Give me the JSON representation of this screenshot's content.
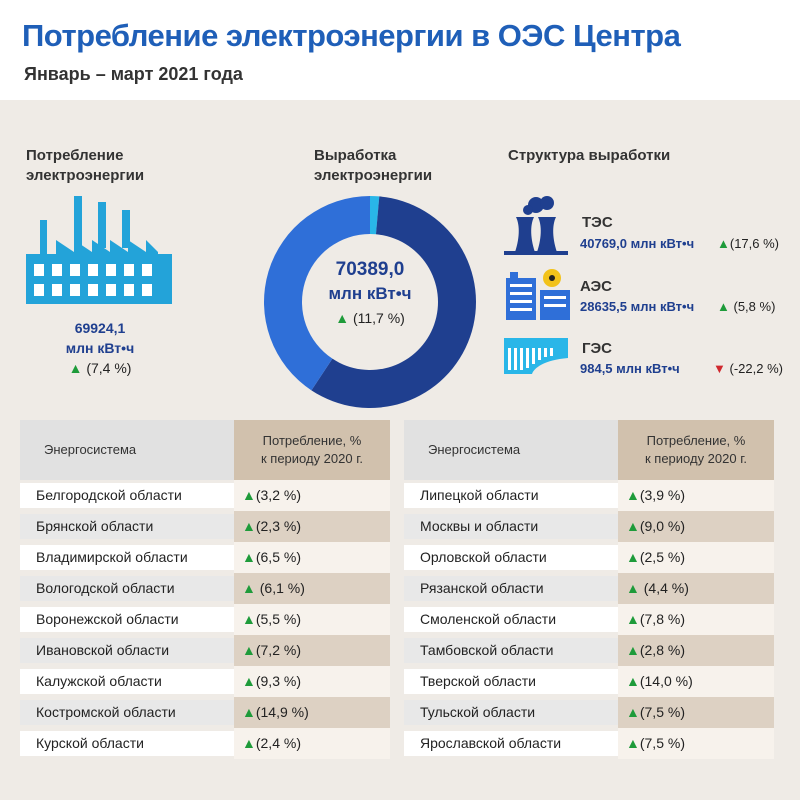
{
  "title": "Потребление электроэнергии в ОЭС Центра",
  "subtitle": "Январь – март 2021 года",
  "consumption": {
    "heading_line1": "Потребление",
    "heading_line2": "электроэнергии",
    "value": "69924,1",
    "unit": "млн кВт•ч",
    "change": "(7,4 %)",
    "direction": "up",
    "icon": "factory-icon"
  },
  "generation": {
    "heading_line1": "Выработка",
    "heading_line2": "электроэнергии",
    "value": "70389,0",
    "unit": "млн кВт•ч",
    "change": "(11,7 %)",
    "direction": "up"
  },
  "structure": {
    "heading": "Структура выработки",
    "items": [
      {
        "name": "ТЭС",
        "value": "40769,0 млн  кВт•ч",
        "change": "(17,6 %)",
        "direction": "up",
        "icon": "thermal-plant-icon"
      },
      {
        "name": "АЭС",
        "value": "28635,5 млн кВт•ч",
        "change": "(5,8 %)",
        "direction": "up",
        "icon": "nuclear-plant-icon"
      },
      {
        "name": "ГЭС",
        "value": "984,5 млн  кВт•ч",
        "change": "(-22,2 %)",
        "direction": "down",
        "icon": "hydro-plant-icon"
      }
    ]
  },
  "colors": {
    "title": "#1f5fb8",
    "tes": "#1f3f8f",
    "aes": "#2f6fd8",
    "ges": "#29b6e8",
    "up": "#1e9b3a",
    "down": "#d0282e"
  },
  "table_headers": {
    "name": "Энергосистема",
    "value_line1": "Потребление, %",
    "value_line2": "к периоду 2020 г."
  },
  "tables": {
    "left": [
      {
        "name": "Белгородской области",
        "change": "(3,2 %)"
      },
      {
        "name": "Брянской области",
        "change": "(2,3 %)"
      },
      {
        "name": "Владимирской области",
        "change": "(6,5 %)"
      },
      {
        "name": "Вологодской области",
        "change": " (6,1 %)"
      },
      {
        "name": "Воронежской области",
        "change": "(5,5 %)"
      },
      {
        "name": "Ивановской области",
        "change": "(7,2 %)"
      },
      {
        "name": "Калужской области",
        "change": "(9,3 %)"
      },
      {
        "name": "Костромской области",
        "change": "(14,9 %)"
      },
      {
        "name": "Курской области",
        "change": "(2,4 %)"
      }
    ],
    "right": [
      {
        "name": "Липецкой области",
        "change": "(3,9 %)"
      },
      {
        "name": "Москвы и области",
        "change": "(9,0 %)"
      },
      {
        "name": "Орловской области",
        "change": "(2,5 %)"
      },
      {
        "name": "Рязанской области",
        "change": " (4,4 %)"
      },
      {
        "name": "Смоленской области",
        "change": "(7,8 %)"
      },
      {
        "name": "Тамбовской области",
        "change": "(2,8 %)"
      },
      {
        "name": "Тверской области",
        "change": "(14,0 %)"
      },
      {
        "name": "Тульской области",
        "change": "(7,5 %)"
      },
      {
        "name": "Ярославской области",
        "change": "(7,5 %)"
      }
    ]
  },
  "chart_data": {
    "type": "pie",
    "categories": [
      "ТЭС",
      "АЭС",
      "ГЭС"
    ],
    "values": [
      40769.0,
      28635.5,
      984.5
    ],
    "units": "млн кВт•ч",
    "donut": true
  }
}
